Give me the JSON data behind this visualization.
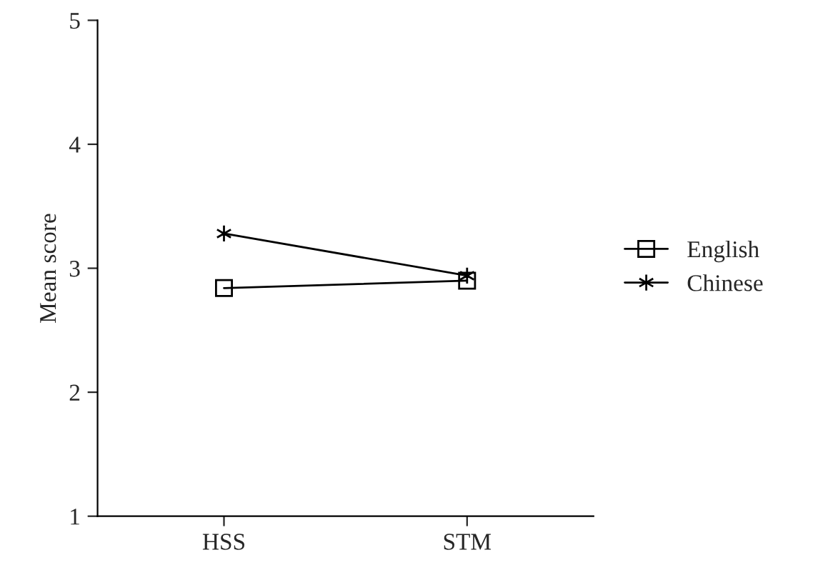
{
  "chart_data": {
    "type": "line",
    "ylabel": "Mean score",
    "categories": [
      "HSS",
      "STM"
    ],
    "series": [
      {
        "name": "English",
        "color": "#000000",
        "values": [
          2.84,
          2.9
        ],
        "marker": "square"
      },
      {
        "name": "Chinese",
        "color": "#000000",
        "values": [
          3.28,
          2.94
        ],
        "marker": "cross"
      }
    ],
    "ylim": [
      1,
      5
    ],
    "yticks": [
      1,
      2,
      3,
      4,
      5
    ],
    "grid": false,
    "legend": "right",
    "line_style": "solid"
  }
}
